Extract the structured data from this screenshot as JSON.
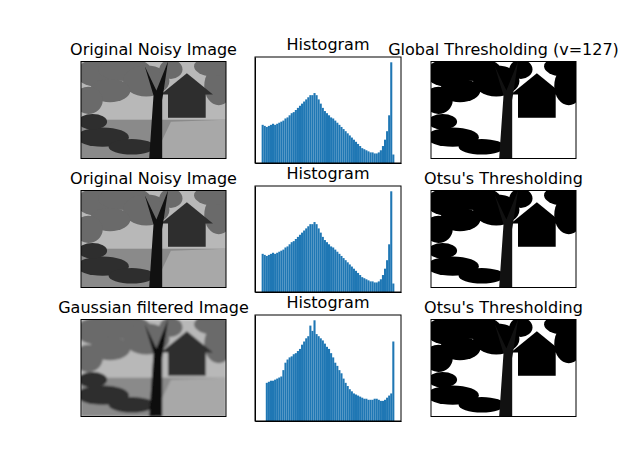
{
  "chart_data": [
    {
      "type": "image",
      "title": "Original Noisy Image",
      "tick_labels": false
    },
    {
      "type": "histogram",
      "title": "Histogram",
      "bins": [
        0,
        4,
        8,
        12,
        16,
        20,
        24,
        28,
        32,
        36,
        40,
        44,
        48,
        52,
        56,
        60,
        64,
        68,
        72,
        76,
        80,
        84,
        88,
        92,
        96,
        100,
        104,
        108,
        112,
        116,
        120,
        124,
        128,
        132,
        136,
        140,
        144,
        148,
        152,
        156,
        160,
        164,
        168,
        172,
        176,
        180,
        184,
        188,
        192,
        196,
        200,
        204,
        208,
        212,
        216,
        220,
        224,
        228,
        232,
        236,
        240,
        244,
        248,
        252,
        256
      ],
      "values": [
        36,
        35,
        34,
        35,
        36,
        37,
        36,
        37,
        38,
        39,
        40,
        42,
        43,
        45,
        47,
        48,
        50,
        52,
        54,
        56,
        58,
        60,
        62,
        64,
        64,
        66,
        64,
        60,
        56,
        52,
        49,
        47,
        45,
        43,
        42,
        40,
        38,
        36,
        34,
        32,
        30,
        28,
        26,
        24,
        22,
        20,
        18,
        16,
        14,
        13,
        12,
        11,
        10,
        10,
        9,
        9,
        10,
        12,
        16,
        22,
        30,
        45,
        95,
        8
      ],
      "xlim": [
        -12.8,
        268.8
      ],
      "ylim": [
        0,
        100
      ],
      "color": "#1f77b4",
      "tick_labels": false
    },
    {
      "type": "image",
      "title": "Global Thresholding (v=127)",
      "tick_labels": false
    },
    {
      "type": "image",
      "title": "Original Noisy Image",
      "tick_labels": false
    },
    {
      "type": "histogram",
      "title": "Histogram",
      "bins": [
        0,
        4,
        8,
        12,
        16,
        20,
        24,
        28,
        32,
        36,
        40,
        44,
        48,
        52,
        56,
        60,
        64,
        68,
        72,
        76,
        80,
        84,
        88,
        92,
        96,
        100,
        104,
        108,
        112,
        116,
        120,
        124,
        128,
        132,
        136,
        140,
        144,
        148,
        152,
        156,
        160,
        164,
        168,
        172,
        176,
        180,
        184,
        188,
        192,
        196,
        200,
        204,
        208,
        212,
        216,
        220,
        224,
        228,
        232,
        236,
        240,
        244,
        248,
        252,
        256
      ],
      "values": [
        36,
        35,
        34,
        35,
        36,
        37,
        36,
        37,
        38,
        39,
        40,
        42,
        43,
        45,
        47,
        48,
        50,
        52,
        54,
        56,
        58,
        60,
        62,
        64,
        64,
        66,
        64,
        60,
        56,
        52,
        49,
        47,
        45,
        43,
        42,
        40,
        38,
        36,
        34,
        32,
        30,
        28,
        26,
        24,
        22,
        20,
        18,
        16,
        14,
        13,
        12,
        11,
        10,
        10,
        9,
        9,
        10,
        12,
        16,
        22,
        30,
        45,
        95,
        8
      ],
      "xlim": [
        -12.8,
        268.8
      ],
      "ylim": [
        0,
        100
      ],
      "color": "#1f77b4",
      "tick_labels": false
    },
    {
      "type": "image",
      "title": "Otsu's Thresholding",
      "tick_labels": false
    },
    {
      "type": "image",
      "title": "Gaussian filtered Image",
      "tick_labels": false
    },
    {
      "type": "histogram",
      "title": "Histogram",
      "bins": [
        0,
        4,
        8,
        12,
        16,
        20,
        24,
        28,
        32,
        36,
        40,
        44,
        48,
        52,
        56,
        60,
        64,
        68,
        72,
        76,
        80,
        84,
        88,
        92,
        96,
        100,
        104,
        108,
        112,
        116,
        120,
        124,
        128,
        132,
        136,
        140,
        144,
        148,
        152,
        156,
        160,
        164,
        168,
        172,
        176,
        180,
        184,
        188,
        192,
        196,
        200,
        204,
        208,
        212,
        216,
        220,
        224,
        228,
        232,
        236,
        240,
        244,
        248,
        252,
        256
      ],
      "values": [
        0,
        0,
        36,
        37,
        38,
        38,
        39,
        40,
        41,
        42,
        48,
        55,
        58,
        60,
        61,
        63,
        64,
        66,
        68,
        72,
        75,
        78,
        80,
        90,
        85,
        95,
        82,
        80,
        78,
        76,
        73,
        70,
        68,
        64,
        60,
        55,
        52,
        48,
        45,
        40,
        36,
        33,
        30,
        28,
        26,
        25,
        24,
        23,
        22,
        21,
        21,
        20,
        20,
        20,
        21,
        21,
        20,
        19,
        19,
        20,
        22,
        24,
        26,
        75
      ],
      "xlim": [
        -12.8,
        268.8
      ],
      "ylim": [
        0,
        100
      ],
      "color": "#1f77b4",
      "tick_labels": false
    },
    {
      "type": "image",
      "title": "Otsu's Thresholding",
      "tick_labels": false
    }
  ]
}
